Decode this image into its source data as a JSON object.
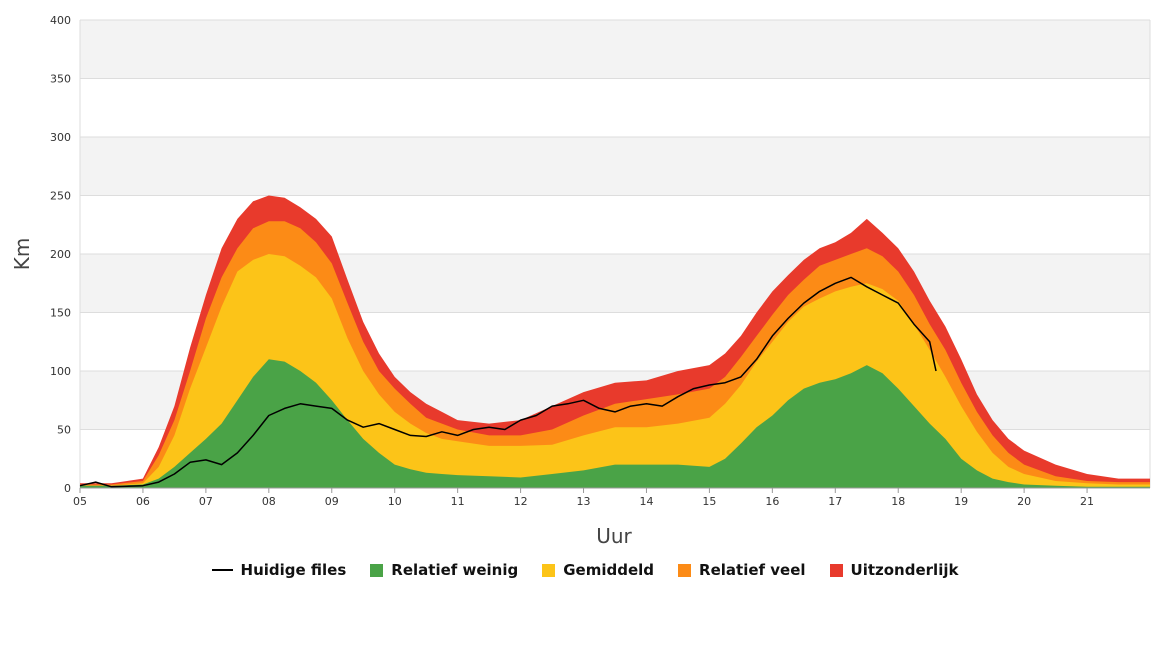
{
  "chart_data": {
    "type": "area",
    "xlabel": "Uur",
    "ylabel": "Km",
    "ylim": [
      0,
      400
    ],
    "yticks": [
      0,
      50,
      100,
      150,
      200,
      250,
      300,
      350,
      400
    ],
    "xlim": [
      5,
      22
    ],
    "xticks": [
      "05",
      "06",
      "07",
      "08",
      "09",
      "10",
      "11",
      "12",
      "13",
      "14",
      "15",
      "16",
      "17",
      "18",
      "19",
      "20",
      "21"
    ],
    "grid": "horizontal bands",
    "legend_position": "bottom",
    "x": [
      5.0,
      5.5,
      6.0,
      6.25,
      6.5,
      6.75,
      7.0,
      7.25,
      7.5,
      7.75,
      8.0,
      8.25,
      8.5,
      8.75,
      9.0,
      9.25,
      9.5,
      9.75,
      10.0,
      10.25,
      10.5,
      10.75,
      11.0,
      11.5,
      12.0,
      12.5,
      13.0,
      13.5,
      14.0,
      14.5,
      15.0,
      15.25,
      15.5,
      15.75,
      16.0,
      16.25,
      16.5,
      16.75,
      17.0,
      17.25,
      17.5,
      17.75,
      18.0,
      18.25,
      18.5,
      18.75,
      19.0,
      19.25,
      19.5,
      19.75,
      20.0,
      20.5,
      21.0,
      21.5,
      22.0
    ],
    "series": [
      {
        "name": "Relatief weinig",
        "color": "#4aa347",
        "values": [
          2,
          2,
          3,
          8,
          18,
          30,
          42,
          55,
          75,
          95,
          110,
          108,
          100,
          90,
          75,
          58,
          42,
          30,
          20,
          16,
          13,
          12,
          11,
          10,
          9,
          12,
          15,
          20,
          20,
          20,
          18,
          25,
          38,
          52,
          62,
          75,
          85,
          90,
          93,
          98,
          105,
          98,
          85,
          70,
          55,
          42,
          25,
          15,
          8,
          5,
          3,
          2,
          1,
          1,
          1
        ]
      },
      {
        "name": "Gemiddeld",
        "color": "#fcc418",
        "values": [
          2,
          2,
          4,
          18,
          45,
          85,
          120,
          155,
          185,
          195,
          200,
          198,
          190,
          180,
          162,
          128,
          100,
          80,
          65,
          55,
          47,
          42,
          40,
          36,
          36,
          37,
          45,
          52,
          52,
          55,
          60,
          72,
          88,
          108,
          125,
          142,
          155,
          162,
          168,
          172,
          175,
          170,
          160,
          140,
          118,
          95,
          70,
          48,
          30,
          18,
          12,
          6,
          4,
          3,
          3
        ]
      },
      {
        "name": "Relatief veel",
        "color": "#fc8b16",
        "values": [
          3,
          3,
          6,
          28,
          58,
          100,
          145,
          180,
          205,
          222,
          228,
          228,
          222,
          210,
          192,
          158,
          125,
          100,
          85,
          72,
          60,
          55,
          50,
          45,
          45,
          50,
          62,
          72,
          76,
          80,
          85,
          95,
          112,
          130,
          148,
          165,
          178,
          190,
          195,
          200,
          205,
          198,
          185,
          165,
          140,
          118,
          90,
          65,
          45,
          30,
          20,
          10,
          6,
          5,
          5
        ]
      },
      {
        "name": "Uitzonderlijk",
        "color": "#e83a2c",
        "values": [
          4,
          4,
          8,
          35,
          70,
          120,
          165,
          205,
          230,
          245,
          250,
          248,
          240,
          230,
          215,
          178,
          142,
          115,
          95,
          82,
          72,
          65,
          58,
          55,
          58,
          70,
          82,
          90,
          92,
          100,
          105,
          115,
          130,
          150,
          168,
          182,
          195,
          205,
          210,
          218,
          230,
          218,
          205,
          185,
          160,
          138,
          110,
          80,
          58,
          42,
          32,
          20,
          12,
          8,
          8
        ]
      }
    ],
    "current": {
      "name": "Huidige files",
      "color": "#000000",
      "x": [
        5.0,
        5.25,
        5.5,
        6.0,
        6.25,
        6.5,
        6.75,
        7.0,
        7.25,
        7.5,
        7.75,
        8.0,
        8.25,
        8.5,
        8.75,
        9.0,
        9.25,
        9.5,
        9.75,
        10.0,
        10.25,
        10.5,
        10.75,
        11.0,
        11.25,
        11.5,
        11.75,
        12.0,
        12.25,
        12.5,
        12.75,
        13.0,
        13.25,
        13.5,
        13.75,
        14.0,
        14.25,
        14.5,
        14.75,
        15.0,
        15.25,
        15.5,
        15.75,
        16.0,
        16.25,
        16.5,
        16.75,
        17.0,
        17.25,
        17.5,
        17.75,
        18.0,
        18.25,
        18.5,
        18.6
      ],
      "values": [
        2,
        5,
        1,
        2,
        5,
        12,
        22,
        24,
        20,
        30,
        45,
        62,
        68,
        72,
        70,
        68,
        58,
        52,
        55,
        50,
        45,
        44,
        48,
        45,
        50,
        52,
        50,
        58,
        62,
        70,
        72,
        75,
        68,
        65,
        70,
        72,
        70,
        78,
        85,
        88,
        90,
        95,
        110,
        130,
        145,
        158,
        168,
        175,
        180,
        172,
        165,
        158,
        140,
        125,
        100
      ]
    }
  },
  "legend": [
    {
      "label": "Huidige files",
      "type": "line",
      "color": "#000000"
    },
    {
      "label": "Relatief weinig",
      "type": "area",
      "color": "#4aa347"
    },
    {
      "label": "Gemiddeld",
      "type": "area",
      "color": "#fcc418"
    },
    {
      "label": "Relatief veel",
      "type": "area",
      "color": "#fc8b16"
    },
    {
      "label": "Uitzonderlijk",
      "type": "area",
      "color": "#e83a2c"
    }
  ]
}
